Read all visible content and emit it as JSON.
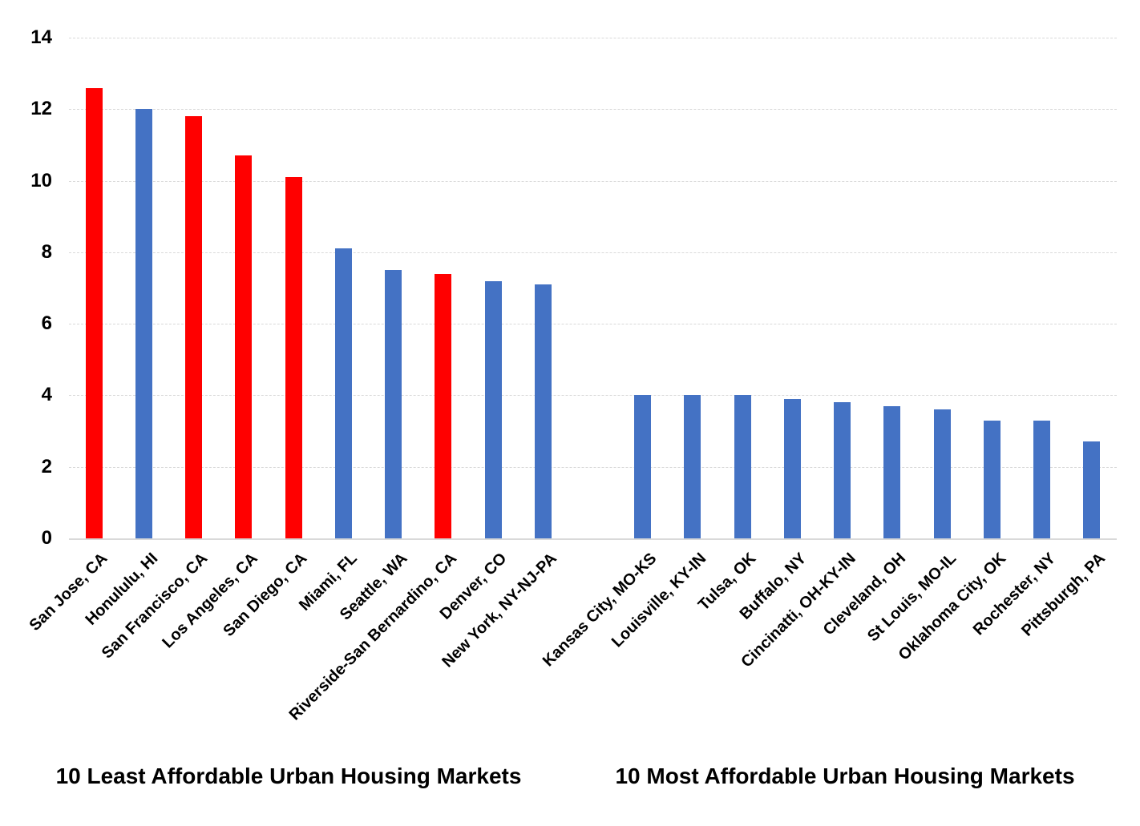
{
  "chart_data": {
    "type": "bar",
    "title": "",
    "xlabel": "",
    "ylabel": "",
    "ylim": [
      0,
      14
    ],
    "yticks": [
      0,
      2,
      4,
      6,
      8,
      10,
      12,
      14
    ],
    "grid": true,
    "legend": false,
    "colors": {
      "highlight_red": "#FF0000",
      "bar_blue": "#4472C4",
      "gridline": "#D9D9D9"
    },
    "groups": [
      {
        "title": "10 Least Affordable Urban Housing Markets",
        "bars": [
          {
            "label": "San Jose, CA",
            "value": 12.6,
            "color": "red"
          },
          {
            "label": "Honululu, HI",
            "value": 12.0,
            "color": "blue"
          },
          {
            "label": "San Francisco, CA",
            "value": 11.8,
            "color": "red"
          },
          {
            "label": "Los Angeles, CA",
            "value": 10.7,
            "color": "red"
          },
          {
            "label": "San Diego, CA",
            "value": 10.1,
            "color": "red"
          },
          {
            "label": "Miami, FL",
            "value": 8.1,
            "color": "blue"
          },
          {
            "label": "Seattle, WA",
            "value": 7.5,
            "color": "blue"
          },
          {
            "label": "Riverside-San Bernardino, CA",
            "value": 7.4,
            "color": "red"
          },
          {
            "label": "Denver, CO",
            "value": 7.2,
            "color": "blue"
          },
          {
            "label": "New York, NY-NJ-PA",
            "value": 7.1,
            "color": "blue"
          }
        ]
      },
      {
        "title": "10 Most Affordable Urban Housing Markets",
        "bars": [
          {
            "label": "Kansas City, MO-KS",
            "value": 4.0,
            "color": "blue"
          },
          {
            "label": "Louisville, KY-IN",
            "value": 4.0,
            "color": "blue"
          },
          {
            "label": "Tulsa, OK",
            "value": 4.0,
            "color": "blue"
          },
          {
            "label": "Buffalo, NY",
            "value": 3.9,
            "color": "blue"
          },
          {
            "label": "Cincinatti, OH-KY-IN",
            "value": 3.8,
            "color": "blue"
          },
          {
            "label": "Cleveland, OH",
            "value": 3.7,
            "color": "blue"
          },
          {
            "label": "St Louis, MO-IL",
            "value": 3.6,
            "color": "blue"
          },
          {
            "label": "Oklahoma City, OK",
            "value": 3.3,
            "color": "blue"
          },
          {
            "label": "Rochester, NY",
            "value": 3.3,
            "color": "blue"
          },
          {
            "label": "Pittsburgh, PA",
            "value": 2.7,
            "color": "blue"
          }
        ]
      }
    ],
    "layout_hints": {
      "empty_slots_between_groups": 1,
      "total_category_slots": 21
    }
  }
}
